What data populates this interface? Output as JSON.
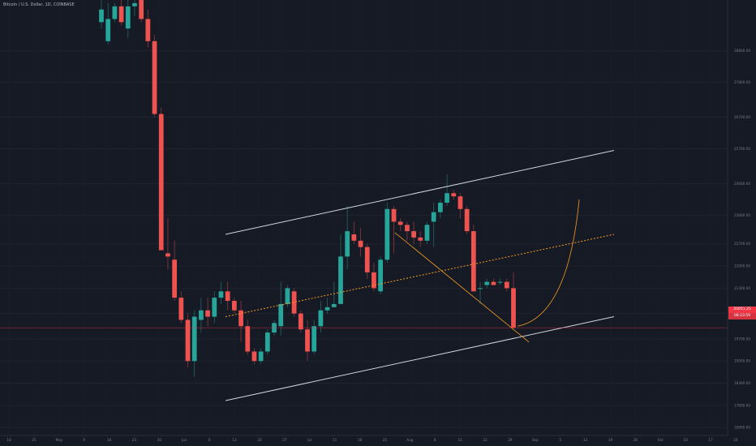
{
  "header": {
    "symbol_title": "Bitcoin / U.S. Dollar, 1D, COINBASE"
  },
  "colors": {
    "background": "#161a25",
    "up": "#26a69a",
    "down": "#ef5350",
    "grid": "#1f2330",
    "channel": "#d1d4dc",
    "midline": "#f59b23",
    "price_line": "#f23645",
    "text": "#787b86"
  },
  "price_tags": {
    "last": "20051.25",
    "countdown": "08:23:59"
  },
  "chart_data": {
    "type": "candlestick",
    "symbol": "BTCUSD",
    "interval": "1D",
    "exchange": "COINBASE",
    "ylim": [
      16650,
      30400
    ],
    "y_ticks": [
      {
        "value": 28800,
        "label": "28800.00"
      },
      {
        "value": 27800,
        "label": "27800.00"
      },
      {
        "value": 26700,
        "label": "26700.00"
      },
      {
        "value": 25700,
        "label": "25700.00"
      },
      {
        "value": 24600,
        "label": "24600.00"
      },
      {
        "value": 23600,
        "label": "23600.00"
      },
      {
        "value": 22700,
        "label": "22700.00"
      },
      {
        "value": 22000,
        "label": "22000.00"
      },
      {
        "value": 21300,
        "label": "21300.00"
      },
      {
        "value": 20500,
        "label": "20500.00"
      },
      {
        "value": 19700,
        "label": "19700.00"
      },
      {
        "value": 19000,
        "label": "19000.00"
      },
      {
        "value": 18300,
        "label": "18300.00"
      },
      {
        "value": 17600,
        "label": "17600.00"
      },
      {
        "value": 16900,
        "label": "16900.00"
      }
    ],
    "x_ticks": [
      "18",
      "25",
      "May",
      "9",
      "16",
      "23",
      "30",
      "Jun",
      "6",
      "13",
      "20",
      "27",
      "Jul",
      "11",
      "18",
      "25",
      "Aug",
      "8",
      "15",
      "22",
      "29",
      "Sep",
      "5",
      "12",
      "19",
      "26",
      "Oct",
      "10",
      "17",
      "24"
    ],
    "candles": [
      [
        29700,
        30400,
        29500,
        30100
      ],
      [
        29100,
        30300,
        29000,
        29800
      ],
      [
        29800,
        30300,
        29700,
        30200
      ],
      [
        30200,
        30400,
        29600,
        29700
      ],
      [
        29500,
        30400,
        29200,
        30200
      ],
      [
        30200,
        30400,
        29900,
        30300
      ],
      [
        30400,
        30600,
        29700,
        29800
      ],
      [
        29800,
        30100,
        28900,
        29100
      ],
      [
        29100,
        29300,
        26700,
        26800
      ],
      [
        26800,
        27000,
        22600,
        22500
      ],
      [
        22400,
        23500,
        21900,
        22300
      ],
      [
        22200,
        22800,
        20900,
        21000
      ],
      [
        21000,
        21200,
        20200,
        20300
      ],
      [
        20300,
        20500,
        18800,
        19000
      ],
      [
        19000,
        20600,
        18500,
        20400
      ],
      [
        20300,
        21000,
        19900,
        20600
      ],
      [
        20600,
        21000,
        20100,
        20400
      ],
      [
        20400,
        21200,
        20200,
        21000
      ],
      [
        21000,
        21500,
        20800,
        21200
      ],
      [
        21200,
        21500,
        20600,
        20900
      ],
      [
        20900,
        21000,
        20500,
        20600
      ],
      [
        20600,
        20900,
        19600,
        20100
      ],
      [
        20100,
        20300,
        19200,
        19300
      ],
      [
        19300,
        19400,
        18900,
        19000
      ],
      [
        19000,
        19400,
        18900,
        19300
      ],
      [
        19300,
        20000,
        19200,
        19900
      ],
      [
        19900,
        20300,
        19800,
        20200
      ],
      [
        20100,
        21500,
        19800,
        20800
      ],
      [
        20800,
        21400,
        20700,
        21300
      ],
      [
        21200,
        21300,
        20400,
        20500
      ],
      [
        20500,
        20600,
        19900,
        20000
      ],
      [
        20000,
        20300,
        19000,
        19300
      ],
      [
        19300,
        20300,
        19200,
        20100
      ],
      [
        20100,
        20900,
        19900,
        20600
      ],
      [
        20600,
        21000,
        20500,
        20700
      ],
      [
        20700,
        21500,
        20700,
        20800
      ],
      [
        20800,
        23000,
        20800,
        22300
      ],
      [
        22300,
        23900,
        21900,
        23100
      ],
      [
        23000,
        23400,
        22700,
        22800
      ],
      [
        22800,
        23200,
        22300,
        22600
      ],
      [
        22600,
        22700,
        21600,
        21800
      ],
      [
        21800,
        22100,
        21200,
        21300
      ],
      [
        21200,
        22300,
        21100,
        22200
      ],
      [
        22200,
        24000,
        22100,
        23800
      ],
      [
        23800,
        23900,
        22400,
        23400
      ],
      [
        23400,
        23500,
        23100,
        23300
      ],
      [
        23300,
        23400,
        22800,
        23100
      ],
      [
        23100,
        23400,
        22700,
        22900
      ],
      [
        22900,
        23100,
        22600,
        22800
      ],
      [
        22800,
        23400,
        22700,
        23300
      ],
      [
        23400,
        24000,
        22600,
        23700
      ],
      [
        23700,
        24100,
        23500,
        24000
      ],
      [
        24000,
        24900,
        23900,
        24300
      ],
      [
        24300,
        24400,
        24100,
        24200
      ],
      [
        24200,
        24300,
        23500,
        23800
      ],
      [
        23800,
        23900,
        23000,
        23100
      ],
      [
        23100,
        23300,
        21300,
        21200
      ],
      [
        21300,
        21500,
        20800,
        21300
      ],
      [
        21400,
        21600,
        21300,
        21500
      ],
      [
        21500,
        21600,
        21400,
        21400
      ],
      [
        21500,
        21600,
        21400,
        21500
      ],
      [
        21500,
        21600,
        21200,
        21300
      ],
      [
        21300,
        21800,
        20000,
        20050
      ]
    ],
    "annotations": [
      {
        "type": "parallel-channel",
        "upper": [
          [
            23000,
            0
          ],
          [
            25650,
            1
          ]
        ],
        "mid": [
          [
            20400,
            0
          ],
          [
            23000,
            1
          ]
        ],
        "lower": [
          [
            17750,
            0
          ],
          [
            20400,
            1
          ]
        ]
      },
      {
        "type": "trendline",
        "from": 23050,
        "to": 19600
      },
      {
        "type": "curve",
        "from": 20100,
        "to": 24100
      }
    ],
    "last_price": 20051.25
  }
}
